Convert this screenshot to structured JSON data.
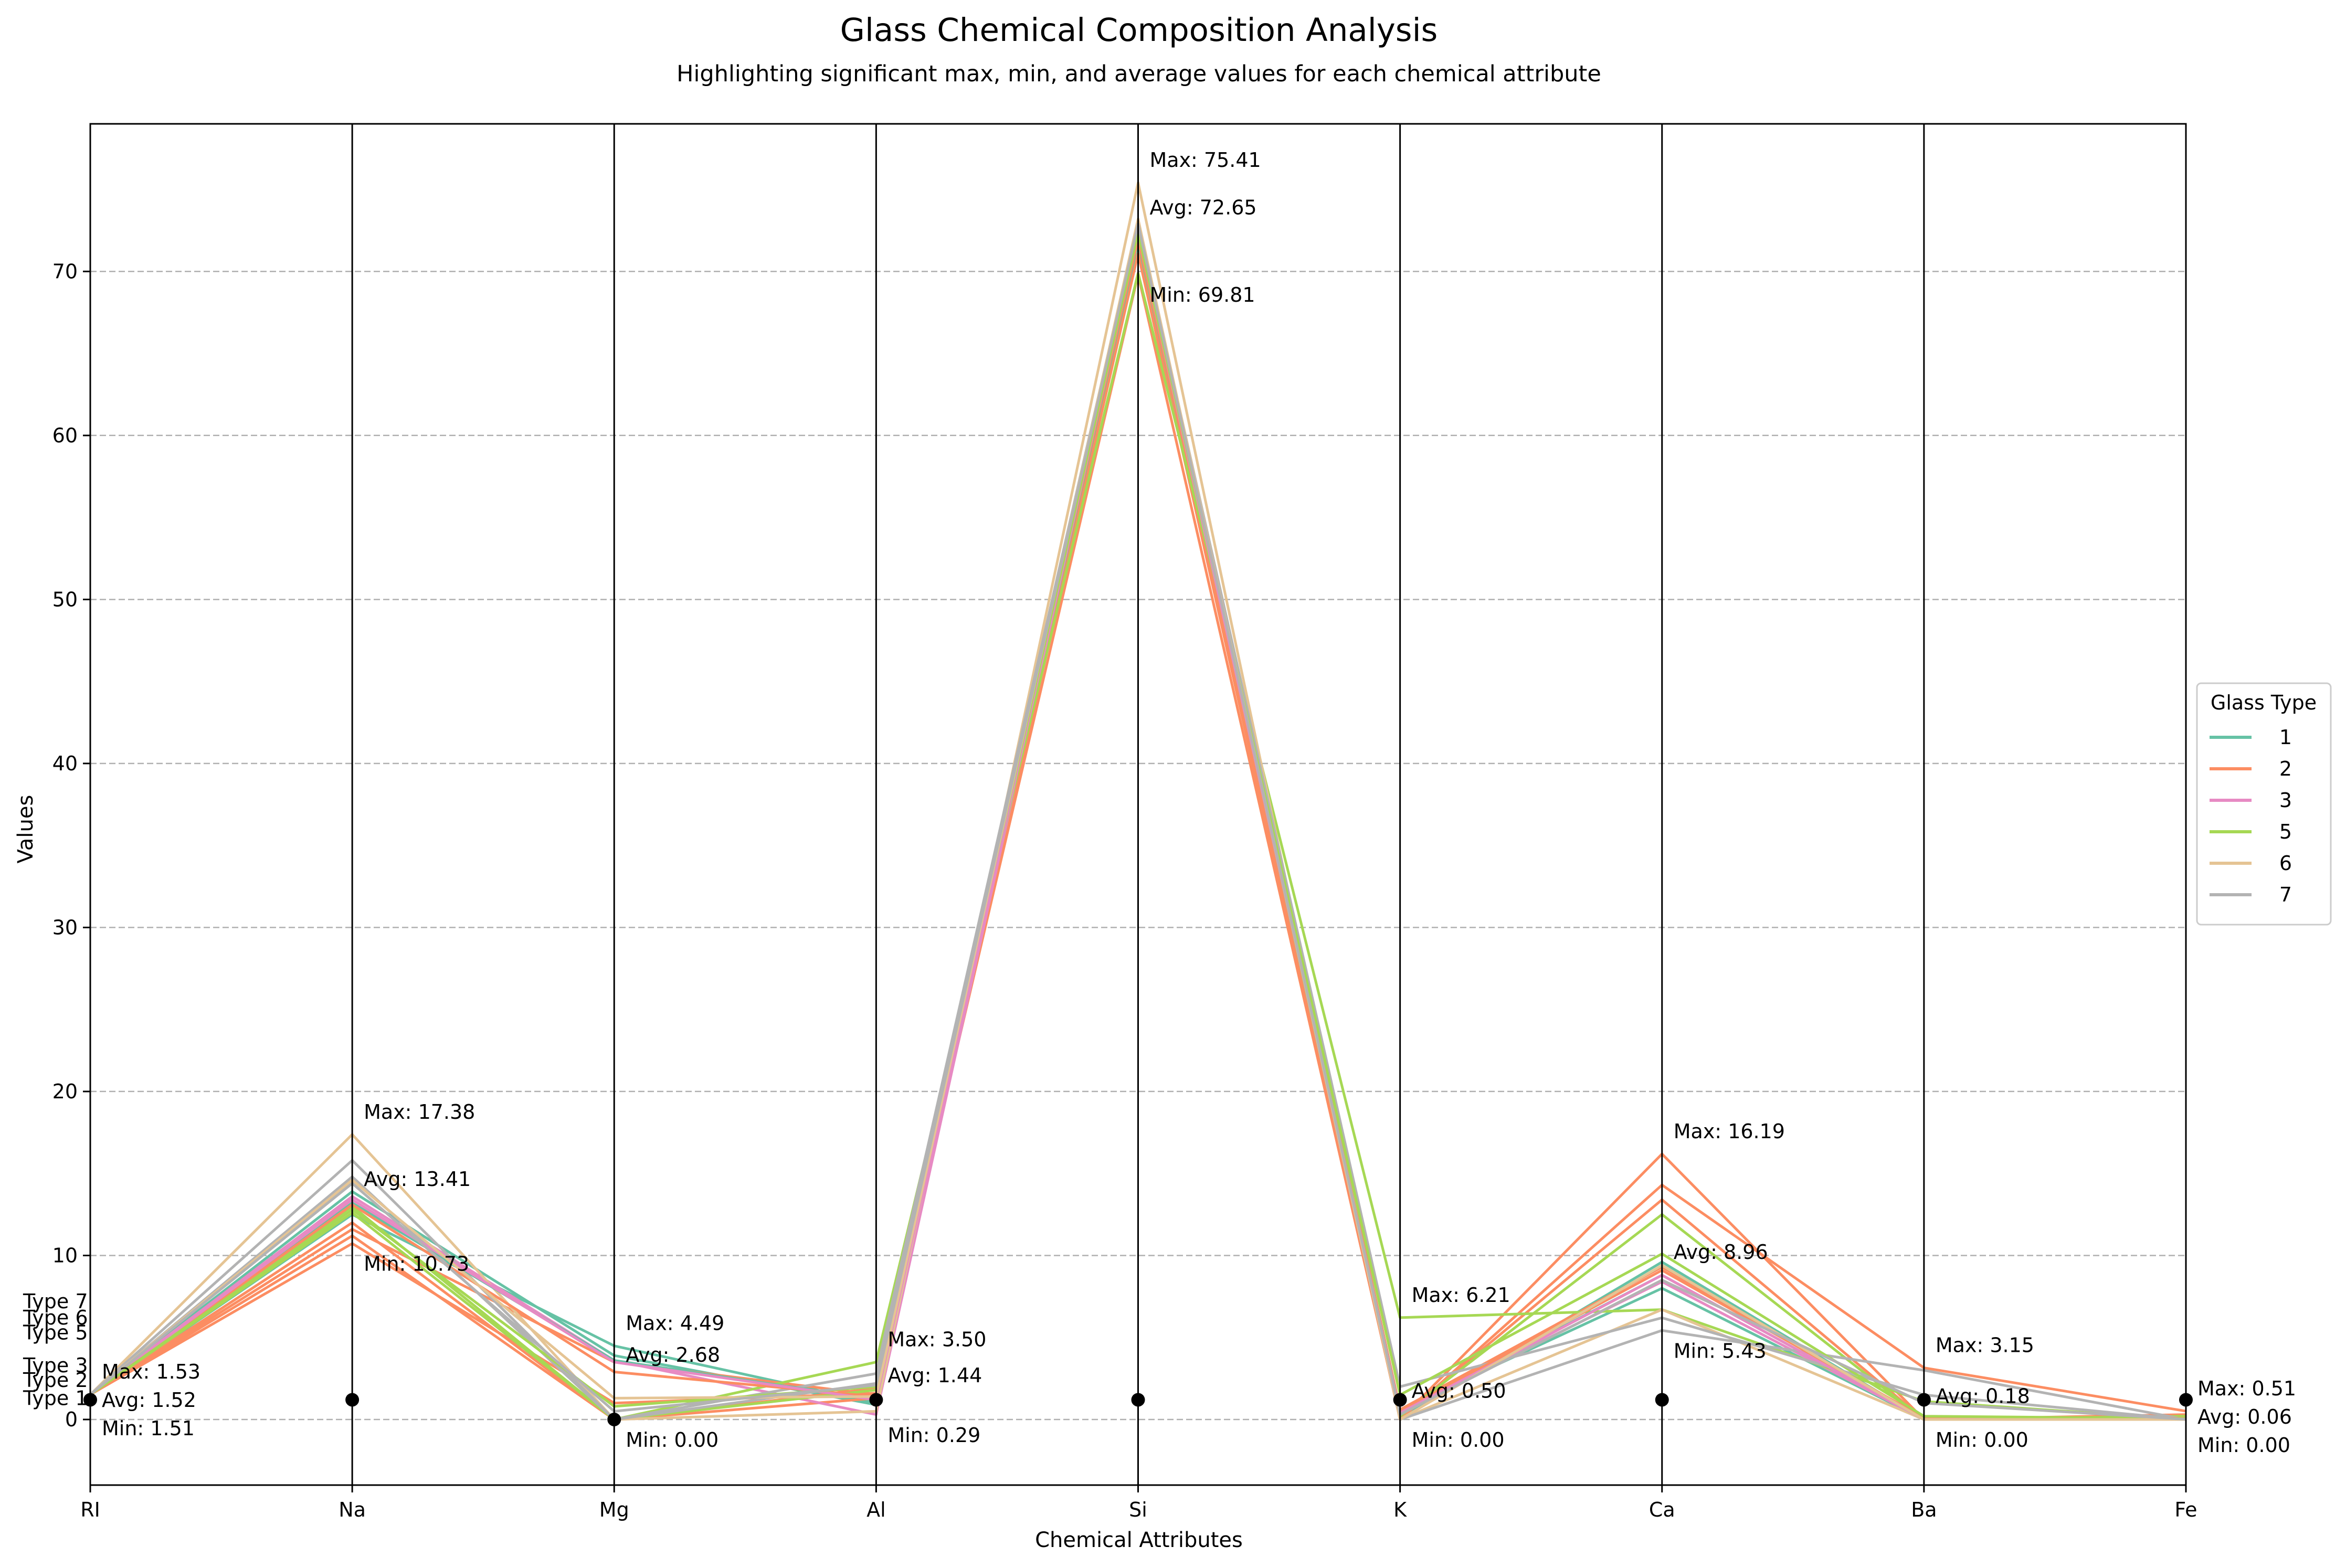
{
  "chart_data": {
    "type": "line",
    "subtype": "parallel-coordinates",
    "title": "Glass Chemical Composition Analysis",
    "subtitle": "Highlighting significant max, min, and average values for each chemical attribute",
    "xlabel": "Chemical Attributes",
    "ylabel": "Values",
    "categories": [
      "RI",
      "Na",
      "Mg",
      "Al",
      "Si",
      "K",
      "Ca",
      "Ba",
      "Fe"
    ],
    "ylim": [
      -4,
      79
    ],
    "yticks": [
      0,
      10,
      20,
      30,
      40,
      50,
      60,
      70
    ],
    "grid": "horizontal dashed",
    "legend": {
      "title": "Glass Type",
      "placement": "right"
    },
    "series": [
      {
        "name": "1",
        "color": "#66c2a5",
        "values": [
          1.52,
          13.2,
          3.6,
          1.2,
          72.6,
          0.5,
          8.8,
          0.0,
          0.06
        ]
      },
      {
        "name": "2",
        "color": "#fc8d62",
        "values": [
          1.52,
          13.1,
          2.9,
          1.4,
          72.6,
          0.5,
          9.1,
          0.1,
          0.08
        ]
      },
      {
        "name": "3",
        "color": "#e78ac3",
        "values": [
          1.52,
          13.4,
          3.5,
          1.2,
          72.4,
          0.4,
          8.8,
          0.0,
          0.06
        ]
      },
      {
        "name": "5",
        "color": "#a6d854",
        "values": [
          1.52,
          12.8,
          0.8,
          2.0,
          72.4,
          1.5,
          10.1,
          0.2,
          0.06
        ]
      },
      {
        "name": "6",
        "color": "#e5c494",
        "values": [
          1.52,
          14.6,
          1.3,
          1.4,
          73.2,
          0.0,
          9.4,
          0.0,
          0.0
        ]
      },
      {
        "name": "7",
        "color": "#b3b3b3",
        "values": [
          1.52,
          14.4,
          0.5,
          2.1,
          72.9,
          0.3,
          8.5,
          1.0,
          0.01
        ]
      }
    ],
    "extra_lines": [
      {
        "series": "1",
        "values": [
          1.52,
          12.5,
          4.49,
          1.0,
          72.9,
          0.6,
          8.0,
          0.0,
          0.1
        ]
      },
      {
        "series": "1",
        "values": [
          1.53,
          13.9,
          3.9,
          0.9,
          71.8,
          0.1,
          9.6,
          0.0,
          0.0
        ]
      },
      {
        "series": "2",
        "values": [
          1.52,
          11.6,
          3.5,
          1.5,
          72.9,
          0.6,
          9.3,
          0.0,
          0.3
        ]
      },
      {
        "series": "2",
        "values": [
          1.53,
          11.2,
          0.0,
          1.3,
          71.1,
          0.0,
          16.19,
          0.0,
          0.0
        ]
      },
      {
        "series": "2",
        "values": [
          1.52,
          12.0,
          0.0,
          1.9,
          72.0,
          0.0,
          14.3,
          3.15,
          0.51
        ]
      },
      {
        "series": "2",
        "values": [
          1.52,
          10.73,
          1.0,
          1.6,
          69.81,
          0.1,
          13.4,
          0.0,
          0.2
        ]
      },
      {
        "series": "3",
        "values": [
          1.52,
          13.6,
          3.6,
          0.3,
          72.7,
          0.5,
          8.4,
          0.0,
          0.0
        ]
      },
      {
        "series": "5",
        "values": [
          1.52,
          12.6,
          0.0,
          3.5,
          69.9,
          6.21,
          6.7,
          1.1,
          0.0
        ]
      },
      {
        "series": "5",
        "values": [
          1.52,
          13.0,
          0.0,
          1.8,
          72.5,
          0.2,
          12.5,
          0.0,
          0.2
        ]
      },
      {
        "series": "6",
        "values": [
          1.51,
          17.38,
          0.0,
          0.5,
          75.41,
          0.0,
          6.7,
          0.0,
          0.0
        ]
      },
      {
        "series": "7",
        "values": [
          1.52,
          15.8,
          0.0,
          2.8,
          73.0,
          0.0,
          5.43,
          3.0,
          0.0
        ]
      },
      {
        "series": "7",
        "values": [
          1.51,
          14.8,
          0.0,
          2.2,
          72.8,
          2.0,
          6.2,
          1.5,
          0.0
        ]
      }
    ],
    "stats": [
      {
        "attribute": "RI",
        "max": "Max: 1.53",
        "avg": "Avg: 1.52",
        "min": "Min: 1.51",
        "max_v": 1.53,
        "avg_v": 1.52,
        "min_v": 1.51
      },
      {
        "attribute": "Na",
        "max": "Max: 17.38",
        "avg": "Avg: 13.41",
        "min": "Min: 10.73",
        "max_v": 17.38,
        "avg_v": 13.41,
        "min_v": 10.73
      },
      {
        "attribute": "Mg",
        "max": "Max: 4.49",
        "avg": "Avg: 2.68",
        "min": "Min: 0.00",
        "max_v": 4.49,
        "avg_v": 2.68,
        "min_v": 0.0
      },
      {
        "attribute": "Al",
        "max": "Max: 3.50",
        "avg": "Avg: 1.44",
        "min": "Min: 0.29",
        "max_v": 3.5,
        "avg_v": 1.44,
        "min_v": 0.29
      },
      {
        "attribute": "Si",
        "max": "Max: 75.41",
        "avg": "Avg: 72.65",
        "min": "Min: 69.81",
        "max_v": 75.41,
        "avg_v": 72.65,
        "min_v": 69.81
      },
      {
        "attribute": "K",
        "max": "Max: 6.21",
        "avg": "Avg: 0.50",
        "min": "Min: 0.00",
        "max_v": 6.21,
        "avg_v": 0.5,
        "min_v": 0.0
      },
      {
        "attribute": "Ca",
        "max": "Max: 16.19",
        "avg": "Avg: 8.96",
        "min": "Min: 5.43",
        "max_v": 16.19,
        "avg_v": 8.96,
        "min_v": 5.43
      },
      {
        "attribute": "Ba",
        "max": "Max: 3.15",
        "avg": "Avg: 0.18",
        "min": "Min: 0.00",
        "max_v": 3.15,
        "avg_v": 0.18,
        "min_v": 0.0
      },
      {
        "attribute": "Fe",
        "max": "Max: 0.51",
        "avg": "Avg: 0.06",
        "min": "Min: 0.00",
        "max_v": 0.51,
        "avg_v": 0.06,
        "min_v": 0.0
      }
    ],
    "type_labels": [
      {
        "text": "Type 7",
        "value": 7.2
      },
      {
        "text": "Type 6",
        "value": 6.2
      },
      {
        "text": "Type 5",
        "value": 5.3
      },
      {
        "text": "Type 3",
        "value": 3.3
      },
      {
        "text": "Type 2",
        "value": 2.4
      },
      {
        "text": "Type 1",
        "value": 1.3
      }
    ],
    "axis_markers": [
      1.2,
      1.2,
      0,
      1.2,
      1.2,
      1.2,
      1.2,
      1.2,
      1.2
    ]
  }
}
